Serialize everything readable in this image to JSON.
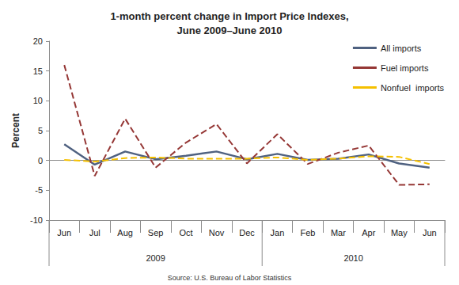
{
  "chart_data": {
    "type": "line",
    "title": "1-month percent change in Import Price Indexes,\nJune 2009–June 2010",
    "y_label": "Percent",
    "source": "Source: U.S. Bureau of Labor Statistics",
    "categories": [
      "Jun",
      "Jul",
      "Aug",
      "Sep",
      "Oct",
      "Nov",
      "Dec",
      "Jan",
      "Feb",
      "Mar",
      "Apr",
      "May",
      "Jun"
    ],
    "x_groups": [
      "2009",
      "2009",
      "2009",
      "2009",
      "2009",
      "2009",
      "2009",
      "2010",
      "2010",
      "2010",
      "2010",
      "2010",
      "2010"
    ],
    "series": [
      {
        "name": "All imports",
        "color": "#4f6180",
        "line_style": "solid",
        "marker": "none",
        "values": [
          2.7,
          -0.7,
          1.5,
          0.2,
          0.8,
          1.5,
          0.2,
          1.1,
          0.1,
          0.3,
          1.0,
          -0.5,
          -1.2
        ]
      },
      {
        "name": "Fuel imports",
        "color": "#953735",
        "line_style": "dashed",
        "marker": "none",
        "values": [
          16.0,
          -2.6,
          7.0,
          -1.2,
          3.0,
          6.1,
          -0.5,
          4.4,
          -0.6,
          1.3,
          2.5,
          -4.1,
          -4.0
        ]
      },
      {
        "name": "Nonfuel  imports",
        "color": "#f5c000",
        "line_style": "dashed",
        "marker": "none",
        "values": [
          0.1,
          -0.2,
          0.4,
          0.5,
          0.3,
          0.3,
          0.3,
          0.5,
          0.1,
          0.3,
          0.7,
          0.6,
          -0.6
        ]
      }
    ],
    "ylim": [
      -10,
      20
    ],
    "yticks": [
      -10,
      -5,
      0,
      5,
      10,
      15,
      20
    ],
    "grid": false,
    "legend": "top-right"
  }
}
